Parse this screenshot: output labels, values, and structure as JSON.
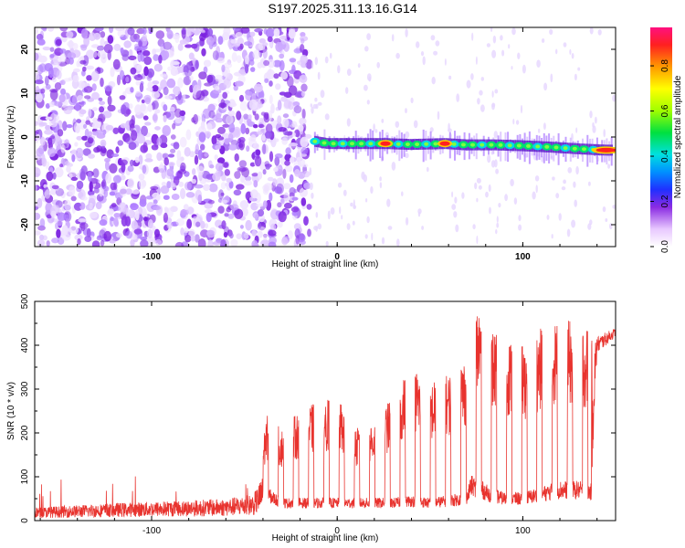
{
  "title": "S197.2025.311.13.16.G14",
  "chart_data": [
    {
      "type": "heatmap",
      "name": "spectrogram",
      "xlabel": "Height of straight line (km)",
      "ylabel": "Frequency (Hz)",
      "xlim": [
        -163,
        150
      ],
      "ylim": [
        -25,
        25
      ],
      "xticks": [
        -100,
        0,
        100
      ],
      "xtick_labels": [
        "-100",
        "0",
        "100"
      ],
      "yticks": [
        -20,
        -10,
        0,
        10,
        20
      ],
      "ytick_labels": [
        "-20",
        "-10",
        "0",
        "10",
        "20"
      ],
      "noise_region_x": [
        -163,
        -15
      ],
      "signal_track": {
        "x": [
          -12,
          -5,
          5,
          20,
          26,
          40,
          58,
          70,
          85,
          100,
          115,
          130,
          145,
          148
        ],
        "freq_hz": [
          -1.0,
          -1.5,
          -1.5,
          -1.5,
          -1.5,
          -1.7,
          -1.5,
          -1.8,
          -1.8,
          -2.0,
          -2.3,
          -2.7,
          -3.0,
          -3.0
        ],
        "peaks_x": [
          26,
          58,
          145
        ]
      }
    },
    {
      "type": "colorbar",
      "label": "Normalized spectral amplitude",
      "ticks": [
        0.0,
        0.2,
        0.4,
        0.6,
        0.8
      ],
      "tick_labels": [
        "0.0",
        "0.2",
        "0.4",
        "0.6",
        "0.8"
      ],
      "range": [
        0,
        0.97
      ]
    },
    {
      "type": "line",
      "name": "snr",
      "xlabel": "Height of straight line (km)",
      "ylabel": "SNR (10 * v/v)",
      "xlim": [
        -163,
        150
      ],
      "ylim": [
        0,
        500
      ],
      "xticks": [
        -100,
        0,
        100
      ],
      "xtick_labels": [
        "-100",
        "0",
        "100"
      ],
      "yticks": [
        0,
        100,
        200,
        300,
        400,
        500
      ],
      "ytick_labels": [
        "0",
        "100",
        "200",
        "300",
        "400",
        "500"
      ],
      "color": "#e8332e",
      "series": [
        {
          "name": "SNR",
          "envelope_x": [
            -163,
            -120,
            -60,
            -45,
            -38,
            -30,
            -20,
            -10,
            0,
            10,
            20,
            30,
            40,
            50,
            60,
            70,
            72,
            78,
            82,
            90,
            100,
            110,
            120,
            130,
            137,
            140,
            150
          ],
          "high_y": [
            15,
            20,
            25,
            40,
            230,
            200,
            240,
            260,
            270,
            200,
            220,
            270,
            340,
            300,
            320,
            360,
            450,
            480,
            420,
            400,
            380,
            420,
            440,
            430,
            420,
            420,
            440
          ],
          "low_y": [
            15,
            20,
            25,
            30,
            60,
            40,
            40,
            40,
            40,
            40,
            40,
            40,
            45,
            40,
            45,
            50,
            80,
            70,
            60,
            50,
            50,
            60,
            70,
            70,
            65,
            380,
            420
          ]
        }
      ]
    }
  ]
}
